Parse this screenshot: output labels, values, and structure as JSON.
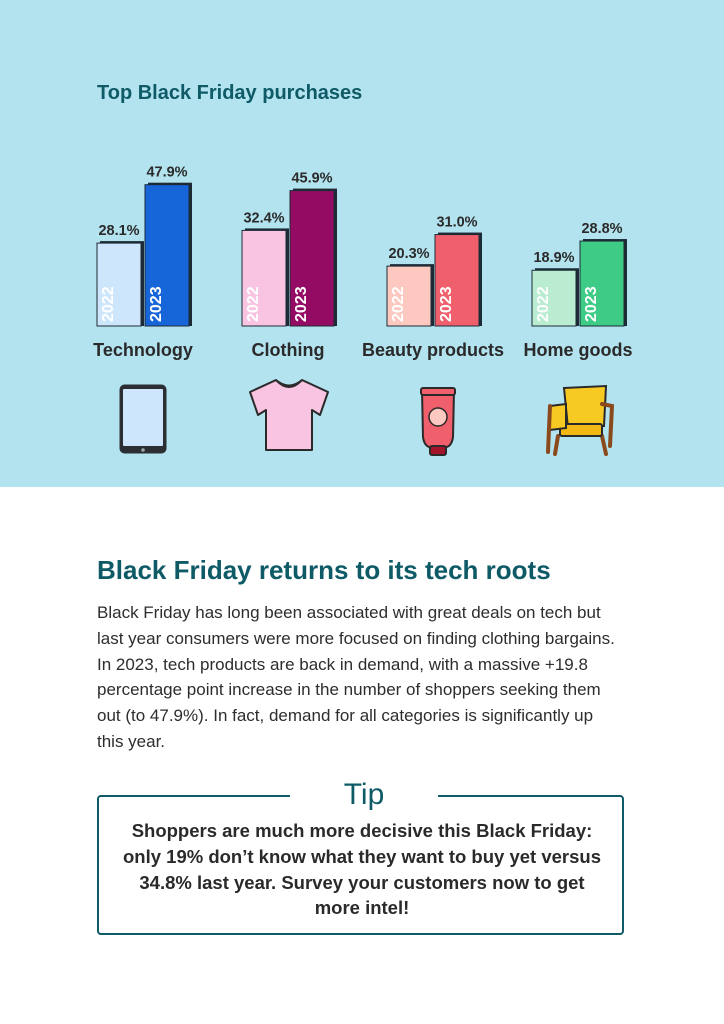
{
  "chart_data": {
    "type": "bar",
    "title": "Top Black Friday purchases",
    "categories": [
      "Technology",
      "Clothing",
      "Beauty products",
      "Home goods"
    ],
    "series": [
      {
        "name": "2022",
        "values": [
          28.1,
          32.4,
          20.3,
          18.9
        ]
      },
      {
        "name": "2023",
        "values": [
          47.9,
          45.9,
          31.0,
          28.8
        ]
      }
    ],
    "value_labels": [
      [
        "28.1%",
        "47.9%"
      ],
      [
        "32.4%",
        "45.9%"
      ],
      [
        "20.3%",
        "31.0%"
      ],
      [
        "18.9%",
        "28.8%"
      ]
    ],
    "series_colors": [
      [
        "#cde6fb",
        "#1766d9"
      ],
      [
        "#f8c4e2",
        "#930b63"
      ],
      [
        "#fcc8c0",
        "#ef5f6c"
      ],
      [
        "#b9ecd0",
        "#3ecb86"
      ]
    ],
    "legend": "year labels written inside bars",
    "ylim": [
      0,
      50
    ]
  },
  "icons": [
    "tablet-icon",
    "t-shirt-icon",
    "cosmetic-tube-icon",
    "armchair-icon"
  ],
  "article": {
    "title": "Black Friday returns to its tech roots",
    "body": "Black Friday has long been associated with great deals on tech but last year consumers were more focused on finding clothing bargains. In 2023, tech products are back in demand, with a massive +19.8 percentage point increase in the number of shoppers seeking them out (to 47.9%). In fact, demand for all categories is significantly up this year."
  },
  "tip": {
    "title": "Tip",
    "text": "Shoppers are much more decisive this Black Friday: only 19% don’t know what they want to buy yet versus 34.8% last year. Survey your customers now to get more intel!"
  },
  "colors": {
    "panel_bg": "#b3e3ef",
    "accent": "#0e5a66",
    "bar_outline": "#1c2b36"
  }
}
